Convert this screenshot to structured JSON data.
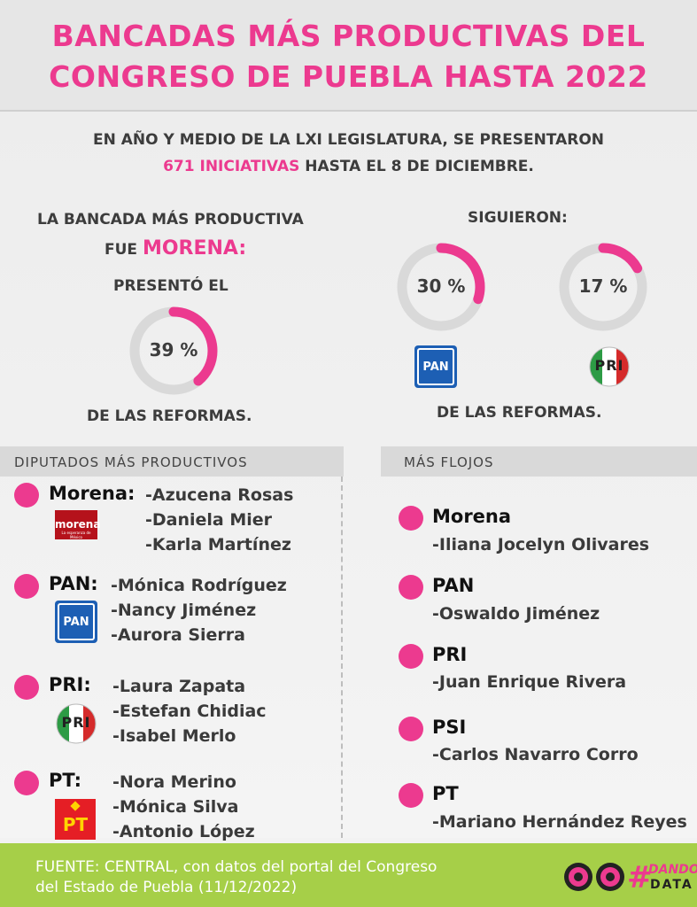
{
  "header": {
    "title_line1": "BANCADAS MÁS PRODUCTIVAS DEL",
    "title_line2": "CONGRESO DE PUEBLA HASTA 2022"
  },
  "intro": {
    "line1": "EN AÑO Y MEDIO DE LA LXI LEGISLATURA, SE PRESENTARON",
    "highlight": "671 INICIATIVAS",
    "line2_rest": " HASTA EL 8 DE DICIEMBRE."
  },
  "left_block": {
    "line1": "LA BANCADA MÁS PRODUCTIVA",
    "line2_prefix": "FUE ",
    "party": "MORENA:",
    "presented": "PRESENTÓ EL",
    "footer": "DE LAS REFORMAS."
  },
  "right_block": {
    "heading": "SIGUIERON:",
    "footer": "DE LAS REFORMAS."
  },
  "chart_data": {
    "type": "pie",
    "series": [
      {
        "name": "MORENA",
        "value": 39,
        "label": "39 %"
      },
      {
        "name": "PAN",
        "value": 30,
        "label": "30 %"
      },
      {
        "name": "PRI",
        "value": 17,
        "label": "17 %"
      }
    ],
    "ring_color": "#ec3a8f",
    "track_color": "#d9d9d9"
  },
  "logos": {
    "morena_text": "morena",
    "morena_sub": "La esperanza de México",
    "pan_text": "PAN",
    "pri_text": "PRI",
    "pt_text": "PT"
  },
  "productive": {
    "heading": "DIPUTADOS MÁS PRODUCTIVOS",
    "groups": [
      {
        "party": "Morena:",
        "names": [
          "-Azucena Rosas",
          "-Daniela Mier",
          "-Karla Martínez"
        ]
      },
      {
        "party": "PAN:",
        "names": [
          "-Mónica Rodríguez",
          "-Nancy Jiménez",
          "-Aurora Sierra"
        ]
      },
      {
        "party": "PRI:",
        "names": [
          "-Laura Zapata",
          "-Estefan Chidiac",
          "-Isabel Merlo"
        ]
      },
      {
        "party": "PT:",
        "names": [
          "-Nora Merino",
          "-Mónica Silva",
          "-Antonio López"
        ]
      }
    ]
  },
  "weak": {
    "heading": "MÁS FLOJOS",
    "groups": [
      {
        "party": "Morena",
        "name": "-Iliana Jocelyn Olivares"
      },
      {
        "party": "PAN",
        "name": "-Oswaldo Jiménez"
      },
      {
        "party": "PRI",
        "name": "-Juan Enrique Rivera"
      },
      {
        "party": "PSI",
        "name": "-Carlos Navarro Corro"
      },
      {
        "party": "PT",
        "name": "-Mariano Hernández Reyes"
      }
    ]
  },
  "footer": {
    "line1": "FUENTE: CENTRAL, con datos del portal del Congreso",
    "line2": "del Estado de Puebla (11/12/2022)",
    "brand_hash": "#",
    "brand_1": "DANDO",
    "brand_2": "DATA"
  },
  "colors": {
    "pink": "#ec3a8f",
    "green_footer": "#a6cf48",
    "pan_blue": "#1d5fb4",
    "pri_green": "#2d9b45",
    "pri_red": "#d52b2b",
    "morena_red": "#b5121b",
    "pt_red": "#e51e25",
    "pt_yellow": "#ffd400"
  }
}
